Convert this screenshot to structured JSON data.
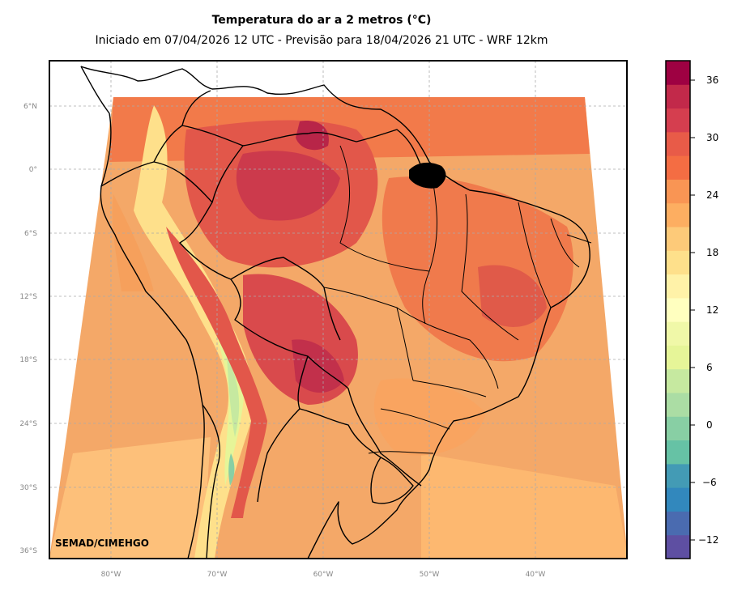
{
  "header": {
    "title": "Temperatura do ar a 2 metros (°C)",
    "subtitle": "Iniciado em 07/04/2026 12 UTC - Previsão para 18/04/2026 21 UTC - WRF 12km"
  },
  "map": {
    "credit": "SEMAD/CIMEHGO",
    "lat_ticks": [
      "6°N",
      "0°",
      "6°S",
      "12°S",
      "18°S",
      "24°S",
      "30°S",
      "36°S"
    ],
    "lon_ticks": [
      "80°W",
      "70°W",
      "60°W",
      "50°W",
      "40°W"
    ]
  },
  "colorbar": {
    "ticks": [
      "36",
      "30",
      "24",
      "18",
      "12",
      "6",
      "0",
      "−6",
      "−12"
    ],
    "colors": [
      "#5e4fa2",
      "#4a6bb0",
      "#3288bd",
      "#439bb5",
      "#66c2a5",
      "#88cfa4",
      "#abdda4",
      "#c6e9a0",
      "#e6f598",
      "#f0f8a8",
      "#ffffbf",
      "#fff2a8",
      "#fee08b",
      "#fdca79",
      "#fdae61",
      "#f99554",
      "#f46d43",
      "#e85b48",
      "#d53e4f",
      "#c2294a",
      "#9e0142"
    ]
  }
}
